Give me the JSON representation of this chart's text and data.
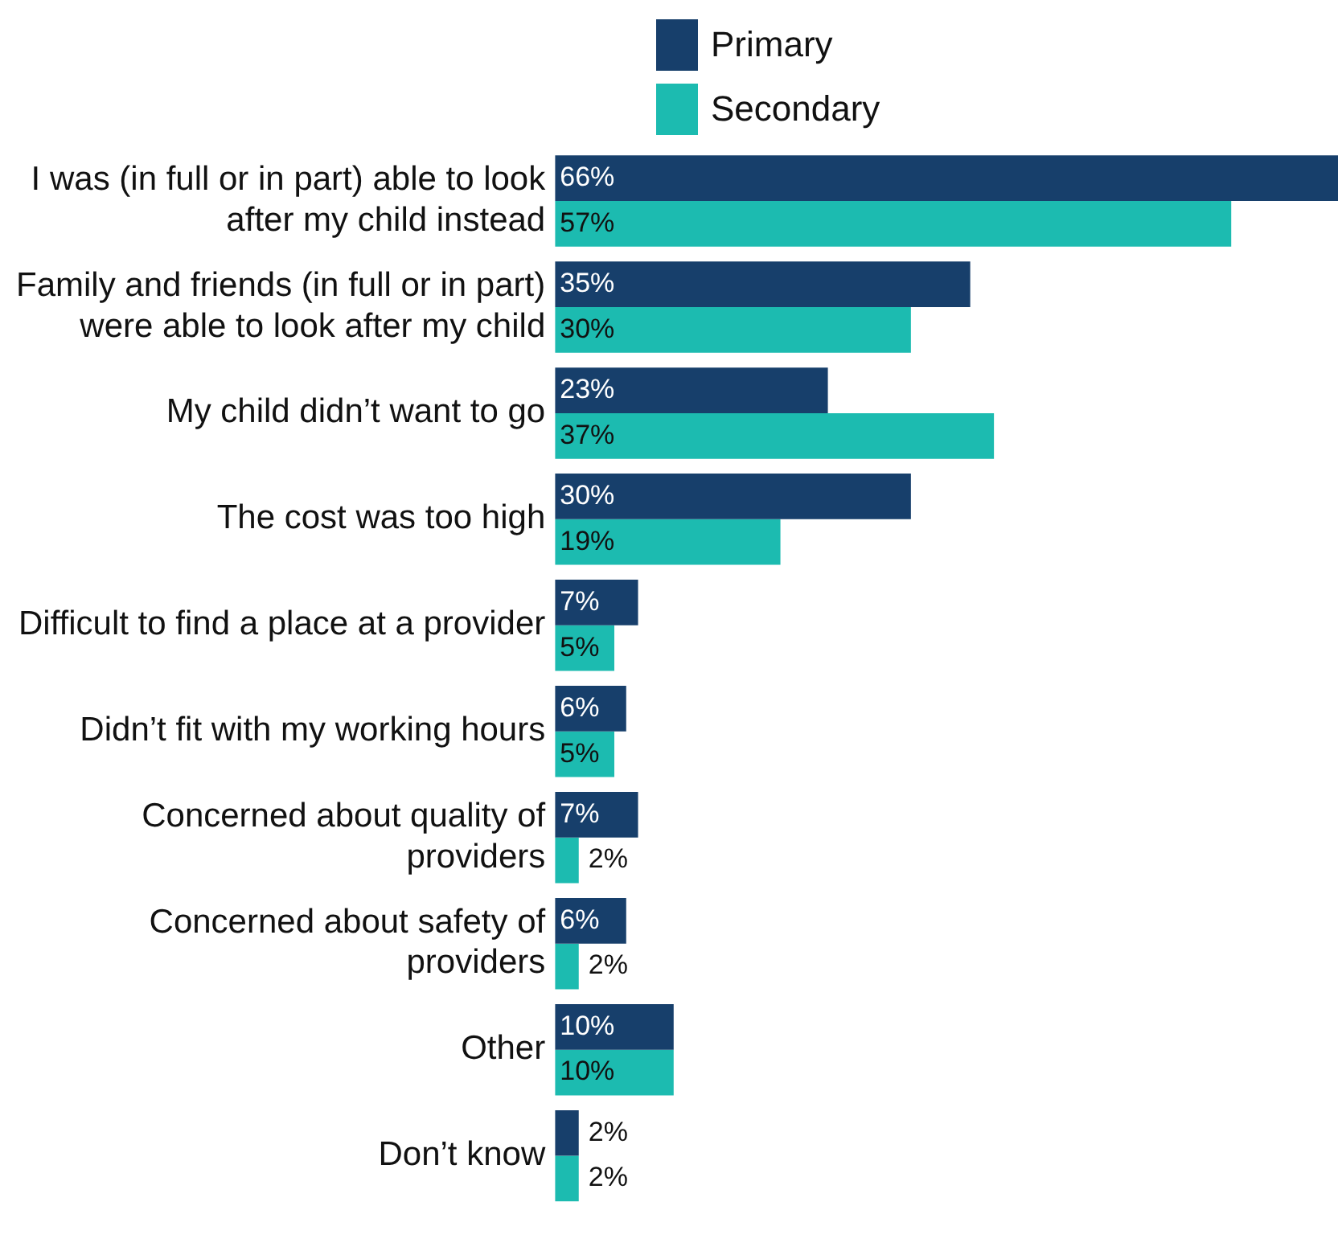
{
  "chart_data": {
    "type": "bar",
    "orientation": "horizontal",
    "categories": [
      "I was (in full or in part) able to look\nafter my child instead",
      "Family and friends (in full or in part)\nwere able to look after my child",
      "My child didn’t want to go",
      "The cost was too high",
      "Difficult to find a place at a provider",
      "Didn’t fit with my working hours",
      "Concerned about quality of\nproviders",
      "Concerned about safety of\nproviders",
      "Other",
      "Don’t know"
    ],
    "series": [
      {
        "name": "Primary",
        "color": "#173f6b",
        "values": [
          66,
          35,
          23,
          30,
          7,
          6,
          7,
          6,
          10,
          2
        ],
        "value_labels": [
          "66%",
          "35%",
          "23%",
          "30%",
          "7%",
          "6%",
          "7%",
          "6%",
          "10%",
          "2%"
        ]
      },
      {
        "name": "Secondary",
        "color": "#1cbbb0",
        "values": [
          57,
          30,
          37,
          19,
          5,
          5,
          2,
          2,
          10,
          2
        ],
        "value_labels": [
          "57%",
          "30%",
          "37%",
          "19%",
          "5%",
          "5%",
          "2%",
          "2%",
          "10%",
          "2%"
        ]
      }
    ],
    "legend": "top"
  }
}
